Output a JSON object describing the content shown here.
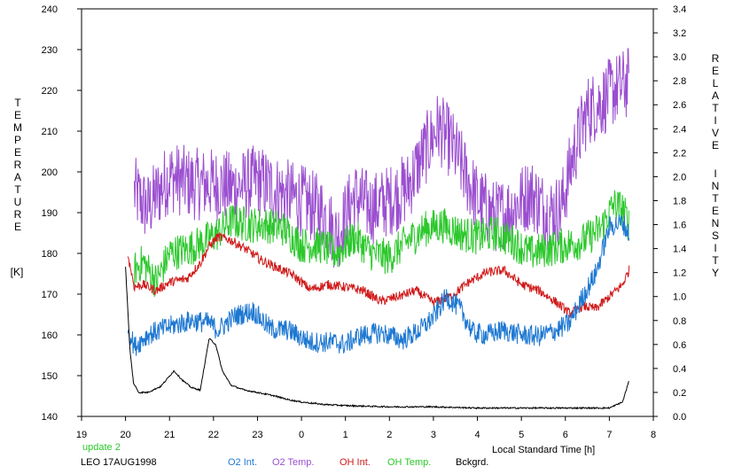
{
  "chart_data": {
    "type": "line",
    "xlabel": "Local Standard Time [h]",
    "x_ticks": [
      "19",
      "20",
      "21",
      "22",
      "23",
      "0",
      "1",
      "2",
      "3",
      "4",
      "5",
      "6",
      "7",
      "8"
    ],
    "x_range_hours": [
      19,
      32
    ],
    "ylabel_left_letters": [
      "T",
      "E",
      "M",
      "P",
      "E",
      "R",
      "A",
      "T",
      "U",
      "R",
      "E"
    ],
    "ylabel_left_unit": "[K]",
    "ylabel_right_words": [
      [
        "R",
        "E",
        "L",
        "A",
        "T",
        "I",
        "V",
        "E"
      ],
      [
        "I",
        "N",
        "T",
        "E",
        "N",
        "S",
        "I",
        "T",
        "Y"
      ]
    ],
    "y_left_ticks": [
      "240",
      "230",
      "220",
      "210",
      "200",
      "190",
      "180",
      "170",
      "160",
      "150",
      "140"
    ],
    "y_left_range": [
      140,
      240
    ],
    "y_right_ticks": [
      "3.4",
      "3.2",
      "3.0",
      "2.8",
      "2.6",
      "2.4",
      "2.2",
      "2.0",
      "1.8",
      "1.6",
      "1.4",
      "1.2",
      "1.0",
      "0.8",
      "0.6",
      "0.4",
      "0.2",
      "0.0"
    ],
    "y_right_range": [
      0,
      3.4
    ],
    "annotations": {
      "update": "update 2",
      "station": "LEO 17AUG1998"
    },
    "legend_placement": "bottom",
    "series": [
      {
        "name": "O2 Int.",
        "axis": "right",
        "color": "#1e78d2",
        "noise": 0.09,
        "points": [
          [
            20.05,
            0.75
          ],
          [
            20.2,
            0.58
          ],
          [
            20.5,
            0.68
          ],
          [
            21.0,
            0.75
          ],
          [
            21.5,
            0.8
          ],
          [
            21.9,
            0.78
          ],
          [
            22.1,
            0.72
          ],
          [
            22.5,
            0.84
          ],
          [
            22.9,
            0.88
          ],
          [
            23.3,
            0.73
          ],
          [
            23.7,
            0.72
          ],
          [
            24.2,
            0.62
          ],
          [
            24.7,
            0.62
          ],
          [
            25.0,
            0.6
          ],
          [
            25.3,
            0.67
          ],
          [
            25.8,
            0.7
          ],
          [
            26.3,
            0.64
          ],
          [
            26.7,
            0.72
          ],
          [
            27.0,
            0.83
          ],
          [
            27.3,
            1.0
          ],
          [
            27.6,
            0.9
          ],
          [
            27.9,
            0.7
          ],
          [
            28.2,
            0.68
          ],
          [
            28.6,
            0.72
          ],
          [
            29.0,
            0.68
          ],
          [
            29.4,
            0.67
          ],
          [
            29.8,
            0.72
          ],
          [
            30.1,
            0.78
          ],
          [
            30.4,
            1.0
          ],
          [
            30.7,
            1.2
          ],
          [
            31.0,
            1.58
          ],
          [
            31.3,
            1.62
          ],
          [
            31.45,
            1.52
          ]
        ]
      },
      {
        "name": "O2 Temp.",
        "axis": "left",
        "color": "#9b4fd0",
        "noise": 9,
        "points": [
          [
            20.2,
            195
          ],
          [
            20.5,
            191
          ],
          [
            21.0,
            199
          ],
          [
            21.5,
            197
          ],
          [
            22.0,
            197
          ],
          [
            22.5,
            196
          ],
          [
            23.0,
            198
          ],
          [
            23.5,
            195
          ],
          [
            24.0,
            193
          ],
          [
            24.5,
            190
          ],
          [
            24.8,
            184
          ],
          [
            25.2,
            194
          ],
          [
            25.6,
            191
          ],
          [
            26.0,
            193
          ],
          [
            26.4,
            196
          ],
          [
            26.8,
            205
          ],
          [
            27.1,
            211
          ],
          [
            27.4,
            207
          ],
          [
            27.7,
            200
          ],
          [
            28.0,
            193
          ],
          [
            28.4,
            189
          ],
          [
            28.8,
            191
          ],
          [
            29.2,
            195
          ],
          [
            29.6,
            190
          ],
          [
            29.9,
            191
          ],
          [
            30.2,
            205
          ],
          [
            30.5,
            215
          ],
          [
            30.8,
            217
          ],
          [
            31.1,
            220
          ],
          [
            31.45,
            222
          ]
        ]
      },
      {
        "name": "OH Int.",
        "axis": "right",
        "color": "#d01a1a",
        "noise": 0.04,
        "points": [
          [
            20.05,
            1.35
          ],
          [
            20.2,
            1.08
          ],
          [
            20.4,
            1.1
          ],
          [
            20.7,
            1.05
          ],
          [
            21.0,
            1.12
          ],
          [
            21.4,
            1.15
          ],
          [
            21.7,
            1.28
          ],
          [
            21.9,
            1.42
          ],
          [
            22.1,
            1.5
          ],
          [
            22.4,
            1.47
          ],
          [
            22.8,
            1.38
          ],
          [
            23.1,
            1.3
          ],
          [
            23.4,
            1.25
          ],
          [
            23.8,
            1.18
          ],
          [
            24.2,
            1.06
          ],
          [
            24.6,
            1.1
          ],
          [
            25.0,
            1.08
          ],
          [
            25.4,
            1.05
          ],
          [
            25.8,
            0.96
          ],
          [
            26.2,
            1.0
          ],
          [
            26.6,
            1.05
          ],
          [
            27.0,
            0.95
          ],
          [
            27.4,
            1.0
          ],
          [
            27.8,
            1.12
          ],
          [
            28.2,
            1.2
          ],
          [
            28.6,
            1.22
          ],
          [
            29.0,
            1.1
          ],
          [
            29.4,
            1.05
          ],
          [
            29.8,
            0.95
          ],
          [
            30.1,
            0.86
          ],
          [
            30.4,
            0.92
          ],
          [
            30.7,
            0.9
          ],
          [
            31.0,
            1.0
          ],
          [
            31.3,
            1.1
          ],
          [
            31.45,
            1.22
          ]
        ]
      },
      {
        "name": "OH Temp.",
        "axis": "left",
        "color": "#2cc82c",
        "noise": 4.5,
        "points": [
          [
            20.2,
            176
          ],
          [
            20.4,
            178
          ],
          [
            20.7,
            173
          ],
          [
            21.0,
            180
          ],
          [
            21.4,
            181
          ],
          [
            21.8,
            183
          ],
          [
            22.1,
            185
          ],
          [
            22.4,
            188
          ],
          [
            22.8,
            187
          ],
          [
            23.2,
            187
          ],
          [
            23.6,
            186
          ],
          [
            24.0,
            182
          ],
          [
            24.4,
            182
          ],
          [
            24.8,
            180
          ],
          [
            25.2,
            184
          ],
          [
            25.6,
            180
          ],
          [
            26.0,
            179
          ],
          [
            26.4,
            183
          ],
          [
            26.8,
            186
          ],
          [
            27.2,
            187
          ],
          [
            27.6,
            185
          ],
          [
            28.0,
            184
          ],
          [
            28.4,
            185
          ],
          [
            28.8,
            183
          ],
          [
            29.2,
            180
          ],
          [
            29.6,
            181
          ],
          [
            30.0,
            182
          ],
          [
            30.4,
            183
          ],
          [
            30.8,
            186
          ],
          [
            31.1,
            192
          ],
          [
            31.3,
            191
          ],
          [
            31.45,
            187
          ]
        ]
      },
      {
        "name": "Bckgrd.",
        "axis": "right",
        "color": "#000000",
        "noise": 0.006,
        "points": [
          [
            20.0,
            1.25
          ],
          [
            20.05,
            0.9
          ],
          [
            20.1,
            0.55
          ],
          [
            20.18,
            0.28
          ],
          [
            20.3,
            0.2
          ],
          [
            20.5,
            0.2
          ],
          [
            20.8,
            0.25
          ],
          [
            21.1,
            0.38
          ],
          [
            21.3,
            0.3
          ],
          [
            21.5,
            0.24
          ],
          [
            21.7,
            0.22
          ],
          [
            21.9,
            0.65
          ],
          [
            22.05,
            0.6
          ],
          [
            22.2,
            0.38
          ],
          [
            22.4,
            0.26
          ],
          [
            22.7,
            0.22
          ],
          [
            23.0,
            0.2
          ],
          [
            23.4,
            0.17
          ],
          [
            23.7,
            0.14
          ],
          [
            24.0,
            0.12
          ],
          [
            24.5,
            0.1
          ],
          [
            25.0,
            0.09
          ],
          [
            26.0,
            0.08
          ],
          [
            27.0,
            0.08
          ],
          [
            28.0,
            0.07
          ],
          [
            29.0,
            0.07
          ],
          [
            30.0,
            0.07
          ],
          [
            31.0,
            0.07
          ],
          [
            31.3,
            0.12
          ],
          [
            31.45,
            0.3
          ]
        ]
      }
    ]
  }
}
